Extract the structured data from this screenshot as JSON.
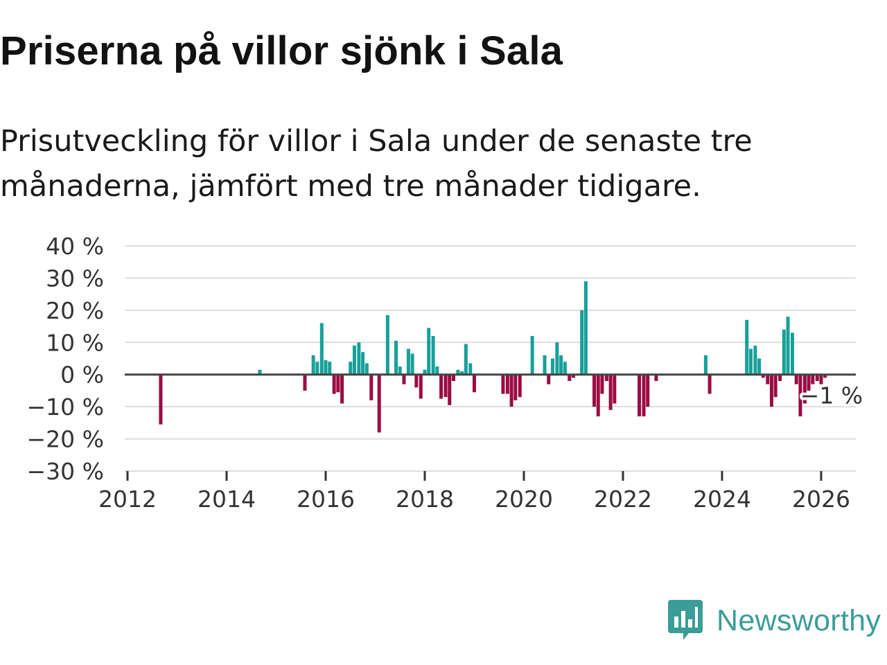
{
  "title": "Priserna på villor sjönk i Sala",
  "subtitle": "Prisutveckling för villor i Sala under de senaste tre månaderna, jämfört med tre månader tidigare.",
  "brand": {
    "name": "Newsworthy"
  },
  "colors": {
    "positive": "#17a099",
    "negative": "#9a0c43",
    "grid": "#dddddd",
    "zero": "#444444",
    "brand": "#3a9d97"
  },
  "chart_data": {
    "type": "bar",
    "title": "Priserna på villor sjönk i Sala",
    "xlabel": "",
    "ylabel": "",
    "y_ticks": [
      40,
      30,
      20,
      10,
      0,
      -10,
      -20,
      -30
    ],
    "y_tick_labels": [
      "40 %",
      "30 %",
      "20 %",
      "10 %",
      "0 %",
      "−10 %",
      "−20 %",
      "−30 %"
    ],
    "ylim": [
      -30,
      40
    ],
    "xlim": [
      2012,
      2026.7
    ],
    "x_ticks": [
      2012,
      2014,
      2016,
      2018,
      2020,
      2022,
      2024,
      2026
    ],
    "x_tick_labels": [
      "2012",
      "2014",
      "2016",
      "2018",
      "2020",
      "2022",
      "2024",
      "2026"
    ],
    "last_label": "−1 %",
    "last_value": -1,
    "series": [
      {
        "name": "Prisutveckling",
        "points": [
          {
            "t": 2012.67,
            "v": -15.5
          },
          {
            "t": 2014.67,
            "v": 1.5
          },
          {
            "t": 2015.58,
            "v": -5
          },
          {
            "t": 2015.75,
            "v": 6
          },
          {
            "t": 2015.83,
            "v": 4
          },
          {
            "t": 2015.92,
            "v": 16
          },
          {
            "t": 2016.0,
            "v": 4.5
          },
          {
            "t": 2016.08,
            "v": 4
          },
          {
            "t": 2016.17,
            "v": -6
          },
          {
            "t": 2016.25,
            "v": -5.5
          },
          {
            "t": 2016.33,
            "v": -9
          },
          {
            "t": 2016.42,
            "v": 0
          },
          {
            "t": 2016.5,
            "v": 4
          },
          {
            "t": 2016.58,
            "v": 9
          },
          {
            "t": 2016.67,
            "v": 10
          },
          {
            "t": 2016.75,
            "v": 7
          },
          {
            "t": 2016.83,
            "v": 3.5
          },
          {
            "t": 2016.92,
            "v": -8
          },
          {
            "t": 2017.0,
            "v": 0
          },
          {
            "t": 2017.08,
            "v": -18
          },
          {
            "t": 2017.25,
            "v": 18.5
          },
          {
            "t": 2017.42,
            "v": 10.5
          },
          {
            "t": 2017.5,
            "v": 2.5
          },
          {
            "t": 2017.58,
            "v": -3
          },
          {
            "t": 2017.67,
            "v": 8
          },
          {
            "t": 2017.75,
            "v": 6.5
          },
          {
            "t": 2017.83,
            "v": -4
          },
          {
            "t": 2017.92,
            "v": -7.5
          },
          {
            "t": 2018.0,
            "v": 1.5
          },
          {
            "t": 2018.08,
            "v": 14.5
          },
          {
            "t": 2018.17,
            "v": 12
          },
          {
            "t": 2018.25,
            "v": 2.5
          },
          {
            "t": 2018.33,
            "v": -7.5
          },
          {
            "t": 2018.42,
            "v": -7
          },
          {
            "t": 2018.5,
            "v": -9.5
          },
          {
            "t": 2018.58,
            "v": -2
          },
          {
            "t": 2018.67,
            "v": 1.5
          },
          {
            "t": 2018.75,
            "v": 1
          },
          {
            "t": 2018.83,
            "v": 9.5
          },
          {
            "t": 2018.92,
            "v": 3.5
          },
          {
            "t": 2019.0,
            "v": -5.5
          },
          {
            "t": 2019.58,
            "v": -6
          },
          {
            "t": 2019.67,
            "v": -6
          },
          {
            "t": 2019.75,
            "v": -10
          },
          {
            "t": 2019.83,
            "v": -8
          },
          {
            "t": 2019.92,
            "v": -7
          },
          {
            "t": 2020.17,
            "v": 12
          },
          {
            "t": 2020.42,
            "v": 6
          },
          {
            "t": 2020.5,
            "v": -3
          },
          {
            "t": 2020.58,
            "v": 5
          },
          {
            "t": 2020.67,
            "v": 10
          },
          {
            "t": 2020.75,
            "v": 6
          },
          {
            "t": 2020.83,
            "v": 4
          },
          {
            "t": 2020.92,
            "v": -2
          },
          {
            "t": 2021.0,
            "v": -1
          },
          {
            "t": 2021.17,
            "v": 20
          },
          {
            "t": 2021.25,
            "v": 29
          },
          {
            "t": 2021.42,
            "v": -10
          },
          {
            "t": 2021.5,
            "v": -13
          },
          {
            "t": 2021.58,
            "v": -6
          },
          {
            "t": 2021.67,
            "v": -2
          },
          {
            "t": 2021.75,
            "v": -11
          },
          {
            "t": 2021.83,
            "v": -9
          },
          {
            "t": 2022.33,
            "v": -13
          },
          {
            "t": 2022.42,
            "v": -13
          },
          {
            "t": 2022.5,
            "v": -10
          },
          {
            "t": 2022.67,
            "v": -2
          },
          {
            "t": 2023.67,
            "v": 6
          },
          {
            "t": 2023.75,
            "v": -6
          },
          {
            "t": 2024.5,
            "v": 17
          },
          {
            "t": 2024.58,
            "v": 8
          },
          {
            "t": 2024.67,
            "v": 9
          },
          {
            "t": 2024.75,
            "v": 5
          },
          {
            "t": 2024.83,
            "v": -1
          },
          {
            "t": 2024.92,
            "v": -3
          },
          {
            "t": 2025.0,
            "v": -10
          },
          {
            "t": 2025.08,
            "v": -7
          },
          {
            "t": 2025.17,
            "v": -2
          },
          {
            "t": 2025.25,
            "v": 14
          },
          {
            "t": 2025.33,
            "v": 18
          },
          {
            "t": 2025.42,
            "v": 13
          },
          {
            "t": 2025.5,
            "v": -3
          },
          {
            "t": 2025.58,
            "v": -13
          },
          {
            "t": 2025.67,
            "v": -9
          },
          {
            "t": 2025.75,
            "v": -5
          },
          {
            "t": 2025.83,
            "v": -3
          },
          {
            "t": 2025.92,
            "v": -2
          },
          {
            "t": 2026.0,
            "v": -3
          },
          {
            "t": 2026.08,
            "v": -1
          }
        ]
      }
    ]
  }
}
